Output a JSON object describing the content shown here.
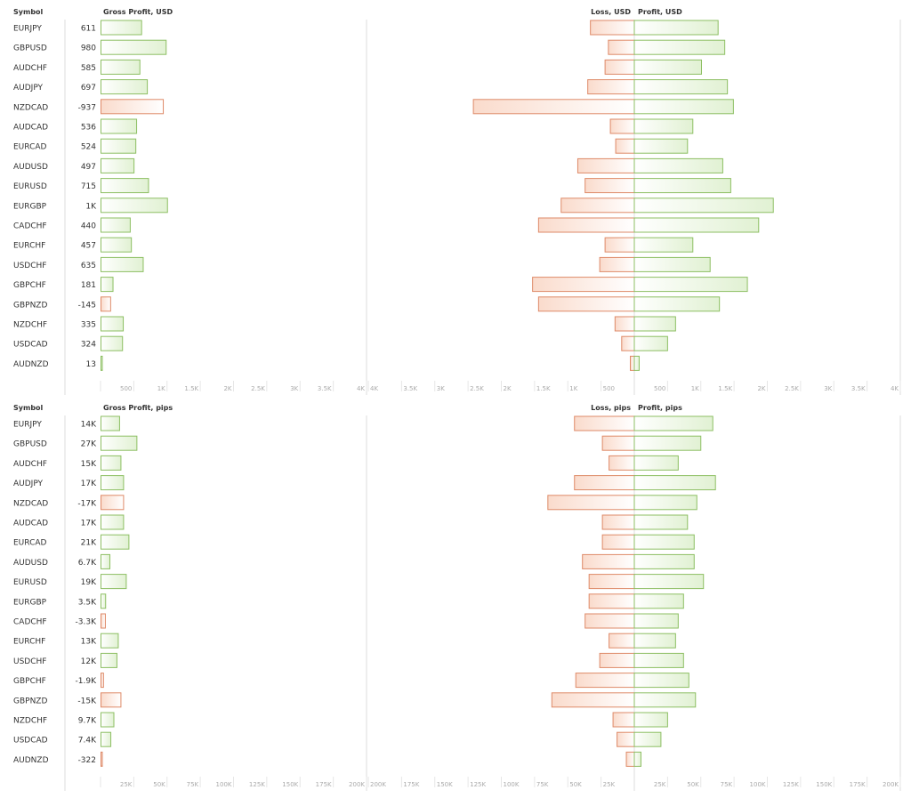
{
  "colors": {
    "profit_stroke": "#8dbf63",
    "profit_fill": "#e4f3d7",
    "loss_stroke": "#de8a68",
    "loss_fill": "#fbe2d6",
    "grid": "#dddddd",
    "text": "#333333",
    "tick_text": "#aaaaaa"
  },
  "chart_data": [
    {
      "type": "bar",
      "unit": "USD",
      "symbol_header": "Symbol",
      "gross_header": "Gross Profit, USD",
      "loss_header": "Loss, USD",
      "profit_header": "Profit, USD",
      "xlim": [
        0,
        4000
      ],
      "tick_labels": [
        "500",
        "1K",
        "1.5K",
        "2K",
        "2.5K",
        "3K",
        "3.5K",
        "4K"
      ],
      "symbols": [
        "EURJPY",
        "GBPUSD",
        "AUDCHF",
        "AUDJPY",
        "NZDCAD",
        "AUDCAD",
        "EURCAD",
        "AUDUSD",
        "EURUSD",
        "EURGBP",
        "CADCHF",
        "EURCHF",
        "USDCHF",
        "GBPCHF",
        "GBPNZD",
        "NZDCHF",
        "USDCAD",
        "AUDNZD"
      ],
      "gross_labels": [
        "611",
        "980",
        "585",
        "697",
        "-937",
        "536",
        "524",
        "497",
        "715",
        "1K",
        "440",
        "457",
        "635",
        "181",
        "-145",
        "335",
        "324",
        "13"
      ],
      "gross": [
        611,
        980,
        585,
        697,
        -937,
        536,
        524,
        497,
        715,
        1000,
        440,
        457,
        635,
        181,
        -145,
        335,
        324,
        13
      ],
      "loss": [
        660,
        390,
        440,
        700,
        2420,
        360,
        280,
        850,
        740,
        1100,
        1440,
        440,
        520,
        1530,
        1440,
        290,
        190,
        60
      ],
      "profit": [
        1260,
        1360,
        1010,
        1400,
        1490,
        880,
        800,
        1330,
        1450,
        2090,
        1870,
        880,
        1140,
        1700,
        1280,
        620,
        500,
        73
      ]
    },
    {
      "type": "bar",
      "unit": "pips",
      "symbol_header": "Symbol",
      "gross_header": "Gross Profit, pips",
      "loss_header": "Loss, pips",
      "profit_header": "Profit, pips",
      "xlim": [
        0,
        200000
      ],
      "tick_labels": [
        "25K",
        "50K",
        "75K",
        "100K",
        "125K",
        "150K",
        "175K",
        "200K"
      ],
      "symbols": [
        "EURJPY",
        "GBPUSD",
        "AUDCHF",
        "AUDJPY",
        "NZDCAD",
        "AUDCAD",
        "EURCAD",
        "AUDUSD",
        "EURUSD",
        "EURGBP",
        "CADCHF",
        "EURCHF",
        "USDCHF",
        "GBPCHF",
        "GBPNZD",
        "NZDCHF",
        "USDCAD",
        "AUDNZD"
      ],
      "gross_labels": [
        "14K",
        "27K",
        "15K",
        "17K",
        "-17K",
        "17K",
        "21K",
        "6.7K",
        "19K",
        "3.5K",
        "-3.3K",
        "13K",
        "12K",
        "-1.9K",
        "-15K",
        "9.7K",
        "7.4K",
        "-322"
      ],
      "gross": [
        14000,
        27000,
        15000,
        17000,
        -17000,
        17000,
        21000,
        6700,
        19000,
        3500,
        -3300,
        13000,
        12000,
        -1900,
        -15000,
        9700,
        7400,
        -322
      ],
      "loss": [
        45000,
        24000,
        19000,
        45000,
        65000,
        24000,
        24000,
        39000,
        34000,
        34000,
        37000,
        19000,
        26000,
        44000,
        62000,
        16000,
        13000,
        6000
      ],
      "profit": [
        59000,
        50000,
        33000,
        61000,
        47000,
        40000,
        45000,
        45000,
        52000,
        37000,
        33000,
        31000,
        37000,
        41000,
        46000,
        25000,
        20000,
        5000
      ]
    }
  ]
}
